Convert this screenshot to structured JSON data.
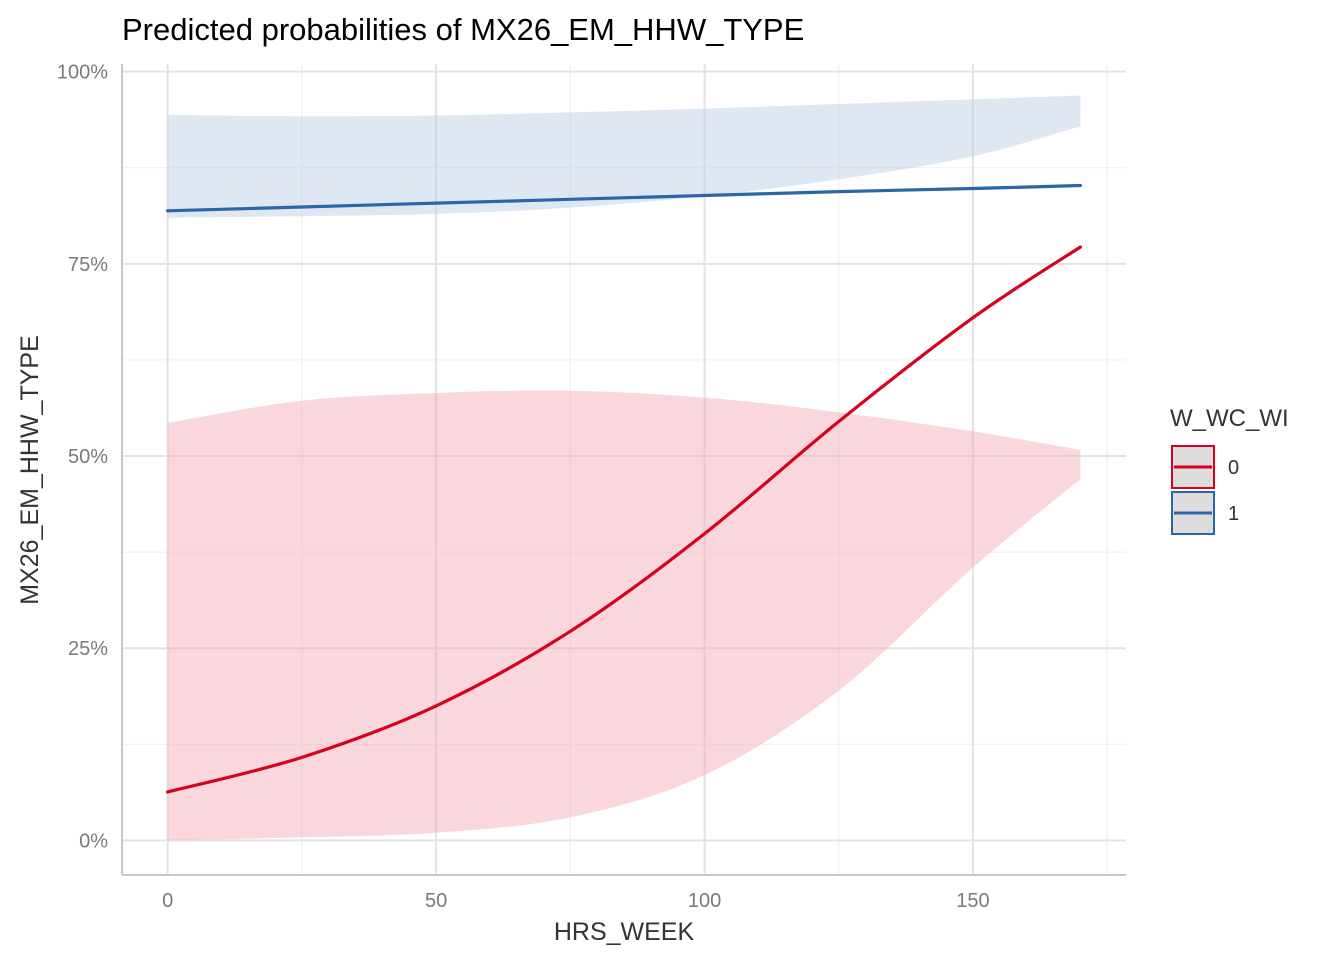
{
  "chart_data": {
    "type": "line",
    "title": "Predicted probabilities of MX26_EM_HHW_TYPE",
    "xlabel": "HRS_WEEK",
    "ylabel": "MX26_EM_HHW_TYPE",
    "xlim": [
      -8.5,
      178.5
    ],
    "ylim": [
      -0.045,
      1.01
    ],
    "x_ticks": [
      0,
      50,
      100,
      150
    ],
    "x_tick_labels": [
      "0",
      "50",
      "100",
      "150"
    ],
    "y_ticks": [
      0,
      0.25,
      0.5,
      0.75,
      1.0
    ],
    "y_tick_labels": [
      "0%",
      "25%",
      "50%",
      "75%",
      "100%"
    ],
    "grid": true,
    "legend": {
      "title": "W_WC_WI",
      "position": "right",
      "entries": [
        "0",
        "1"
      ]
    },
    "x": [
      0,
      25,
      50,
      75,
      100,
      125,
      150,
      170
    ],
    "series": [
      {
        "name": "0",
        "color": "#d7001f",
        "ribbon_color": "#f4a6b1",
        "values": [
          0.063,
          0.108,
          0.175,
          0.272,
          0.399,
          0.545,
          0.68,
          0.772
        ],
        "lower": [
          0.0,
          0.004,
          0.01,
          0.03,
          0.085,
          0.195,
          0.355,
          0.47
        ],
        "upper": [
          0.543,
          0.572,
          0.582,
          0.585,
          0.576,
          0.557,
          0.532,
          0.508
        ]
      },
      {
        "name": "1",
        "color": "#2b67a6",
        "ribbon_color": "#b9cce2",
        "values": [
          0.819,
          0.824,
          0.829,
          0.834,
          0.839,
          0.844,
          0.848,
          0.852
        ],
        "lower": [
          0.81,
          0.812,
          0.815,
          0.823,
          0.838,
          0.86,
          0.89,
          0.929
        ],
        "upper": [
          0.944,
          0.942,
          0.943,
          0.947,
          0.952,
          0.958,
          0.964,
          0.969
        ]
      }
    ]
  }
}
